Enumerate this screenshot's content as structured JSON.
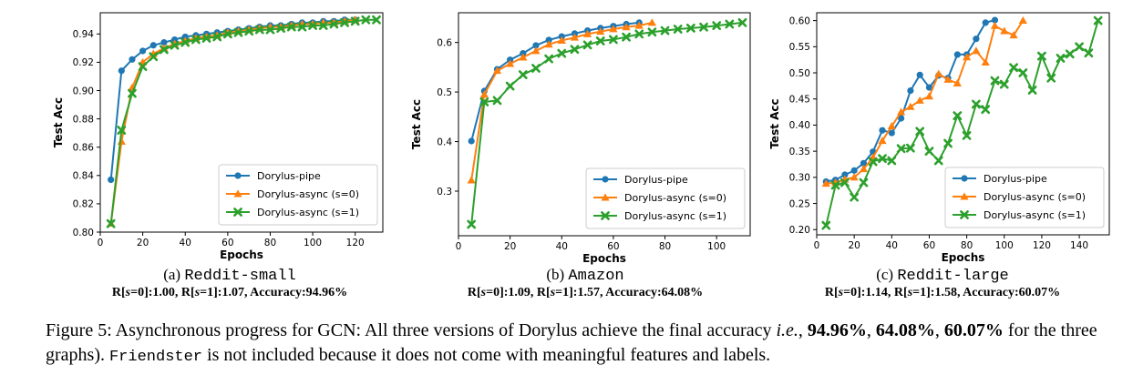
{
  "chart_data": [
    {
      "type": "line",
      "xlabel": "Epochs",
      "ylabel": "Test Acc",
      "xlim": [
        0,
        133
      ],
      "ylim": [
        0.8,
        0.955
      ],
      "xticks": [
        "0",
        "20",
        "40",
        "60",
        "80",
        "100",
        "120"
      ],
      "yticks": [
        "0.80",
        "0.82",
        "0.84",
        "0.86",
        "0.88",
        "0.90",
        "0.92",
        "0.94"
      ],
      "legend_position": "lower-right",
      "series": [
        {
          "name": "Dorylus-pipe",
          "color": "#1f77b4",
          "marker": "circle",
          "x": [
            5,
            10,
            15,
            20,
            25,
            30,
            35,
            40,
            45,
            50,
            55,
            60,
            65,
            70,
            75,
            80,
            85,
            90,
            95,
            100,
            105,
            110,
            115,
            120
          ],
          "y": [
            0.837,
            0.914,
            0.922,
            0.928,
            0.932,
            0.934,
            0.936,
            0.938,
            0.939,
            0.94,
            0.941,
            0.942,
            0.943,
            0.944,
            0.945,
            0.946,
            0.946,
            0.947,
            0.948,
            0.948,
            0.949,
            0.949,
            0.95,
            0.95
          ]
        },
        {
          "name": "Dorylus-async (s=0)",
          "color": "#ff7f0e",
          "marker": "triangle",
          "x": [
            5,
            10,
            15,
            20,
            25,
            30,
            35,
            40,
            45,
            50,
            55,
            60,
            65,
            70,
            75,
            80,
            85,
            90,
            95,
            100,
            105,
            110,
            115,
            120
          ],
          "y": [
            0.806,
            0.864,
            0.902,
            0.92,
            0.926,
            0.93,
            0.933,
            0.935,
            0.937,
            0.938,
            0.939,
            0.941,
            0.942,
            0.943,
            0.944,
            0.945,
            0.945,
            0.946,
            0.947,
            0.947,
            0.948,
            0.948,
            0.949,
            0.95
          ]
        },
        {
          "name": "Dorylus-async (s=1)",
          "color": "#2ca02c",
          "marker": "x",
          "x": [
            5,
            10,
            15,
            20,
            25,
            30,
            35,
            40,
            45,
            50,
            55,
            60,
            65,
            70,
            75,
            80,
            85,
            90,
            95,
            100,
            105,
            110,
            115,
            120,
            125,
            130
          ],
          "y": [
            0.806,
            0.872,
            0.898,
            0.917,
            0.924,
            0.929,
            0.932,
            0.934,
            0.936,
            0.937,
            0.938,
            0.94,
            0.941,
            0.942,
            0.943,
            0.943,
            0.944,
            0.945,
            0.945,
            0.946,
            0.946,
            0.947,
            0.948,
            0.949,
            0.95,
            0.95
          ]
        }
      ],
      "caption_label": "(a)",
      "caption_name": "Reddit-small",
      "caption_stats": {
        "r0_prefix": "R[",
        "s_var": "s",
        "r0_suffix": "=0]:1.00, R[",
        "r1_suffix": "=1]:1.07, Accuracy:94.96%"
      }
    },
    {
      "type": "line",
      "xlabel": "Epochs",
      "ylabel": "Test Acc",
      "xlim": [
        0,
        113
      ],
      "ylim": [
        0.21,
        0.66
      ],
      "xticks": [
        "0",
        "20",
        "40",
        "60",
        "80",
        "100"
      ],
      "yticks": [
        "0.3",
        "0.4",
        "0.5",
        "0.6"
      ],
      "legend_position": "lower-right",
      "series": [
        {
          "name": "Dorylus-pipe",
          "color": "#1f77b4",
          "marker": "circle",
          "x": [
            5,
            10,
            15,
            20,
            25,
            30,
            35,
            40,
            45,
            50,
            55,
            60,
            65,
            70
          ],
          "y": [
            0.401,
            0.502,
            0.546,
            0.565,
            0.578,
            0.594,
            0.605,
            0.612,
            0.618,
            0.624,
            0.629,
            0.633,
            0.637,
            0.64
          ]
        },
        {
          "name": "Dorylus-async (s=0)",
          "color": "#ff7f0e",
          "marker": "triangle",
          "x": [
            5,
            10,
            15,
            20,
            25,
            30,
            35,
            40,
            45,
            50,
            55,
            60,
            65,
            70,
            75
          ],
          "y": [
            0.322,
            0.495,
            0.543,
            0.557,
            0.57,
            0.583,
            0.596,
            0.604,
            0.61,
            0.617,
            0.622,
            0.627,
            0.631,
            0.634,
            0.64
          ]
        },
        {
          "name": "Dorylus-async (s=1)",
          "color": "#2ca02c",
          "marker": "x",
          "x": [
            5,
            10,
            15,
            20,
            25,
            30,
            35,
            40,
            45,
            50,
            55,
            60,
            65,
            70,
            75,
            80,
            85,
            90,
            95,
            100,
            105,
            110
          ],
          "y": [
            0.233,
            0.48,
            0.483,
            0.512,
            0.535,
            0.548,
            0.567,
            0.578,
            0.586,
            0.595,
            0.603,
            0.606,
            0.611,
            0.617,
            0.621,
            0.624,
            0.627,
            0.629,
            0.631,
            0.634,
            0.637,
            0.64
          ]
        }
      ],
      "caption_label": "(b)",
      "caption_name": "Amazon",
      "caption_stats": {
        "r0_prefix": "R[",
        "s_var": "s",
        "r0_suffix": "=0]:1.09, R[",
        "r1_suffix": "=1]:1.57, Accuracy:64.08%"
      }
    },
    {
      "type": "line",
      "xlabel": "Epochs",
      "ylabel": "Test Acc",
      "xlim": [
        0,
        156
      ],
      "ylim": [
        0.19,
        0.615
      ],
      "xticks": [
        "0",
        "20",
        "40",
        "60",
        "80",
        "100",
        "120",
        "140"
      ],
      "yticks": [
        "0.20",
        "0.25",
        "0.30",
        "0.35",
        "0.40",
        "0.45",
        "0.50",
        "0.55",
        "0.60"
      ],
      "legend_position": "lower-right",
      "series": [
        {
          "name": "Dorylus-pipe",
          "color": "#1f77b4",
          "marker": "circle",
          "x": [
            5,
            10,
            15,
            20,
            25,
            30,
            35,
            40,
            45,
            50,
            55,
            60,
            65,
            70,
            75,
            80,
            85,
            90,
            95
          ],
          "y": [
            0.292,
            0.295,
            0.305,
            0.313,
            0.327,
            0.349,
            0.39,
            0.385,
            0.413,
            0.466,
            0.496,
            0.472,
            0.495,
            0.49,
            0.535,
            0.535,
            0.565,
            0.596,
            0.601
          ]
        },
        {
          "name": "Dorylus-async (s=0)",
          "color": "#ff7f0e",
          "marker": "triangle",
          "x": [
            5,
            10,
            15,
            20,
            25,
            30,
            35,
            40,
            45,
            50,
            55,
            60,
            65,
            70,
            75,
            80,
            85,
            90,
            95,
            100,
            105,
            110
          ],
          "y": [
            0.288,
            0.29,
            0.296,
            0.3,
            0.316,
            0.338,
            0.37,
            0.398,
            0.425,
            0.435,
            0.447,
            0.455,
            0.498,
            0.487,
            0.48,
            0.53,
            0.542,
            0.52,
            0.59,
            0.58,
            0.572,
            0.6
          ]
        },
        {
          "name": "Dorylus-async (s=1)",
          "color": "#2ca02c",
          "marker": "x",
          "x": [
            5,
            10,
            15,
            20,
            25,
            30,
            35,
            40,
            45,
            50,
            55,
            60,
            65,
            70,
            75,
            80,
            85,
            90,
            95,
            100,
            105,
            110,
            115,
            120,
            125,
            130,
            135,
            140,
            145,
            150
          ],
          "y": [
            0.208,
            0.285,
            0.29,
            0.262,
            0.29,
            0.33,
            0.336,
            0.332,
            0.355,
            0.356,
            0.388,
            0.35,
            0.332,
            0.365,
            0.418,
            0.38,
            0.44,
            0.43,
            0.485,
            0.478,
            0.51,
            0.5,
            0.467,
            0.532,
            0.49,
            0.528,
            0.536,
            0.55,
            0.538,
            0.6
          ]
        }
      ],
      "caption_label": "(c)",
      "caption_name": "Reddit-large",
      "caption_stats": {
        "r0_prefix": "R[",
        "s_var": "s",
        "r0_suffix": "=0]:1.14, R[",
        "r1_suffix": "=1]:1.58, Accuracy:60.07%"
      }
    }
  ],
  "figure_caption": {
    "t1": "Figure 5: Asynchronous progress for GCN: All three versions of Dorylus achieve the final accuracy ",
    "t2": "i.e.",
    "t3": ", ",
    "t4": "94.96%",
    "t5": ", ",
    "t6": "64.08%",
    "t7": ", ",
    "t8": "60.07%",
    "t9": " for the three graphs). ",
    "t10": "Friendster",
    "t11": " is not included because it does not come with meaningful features and labels."
  }
}
